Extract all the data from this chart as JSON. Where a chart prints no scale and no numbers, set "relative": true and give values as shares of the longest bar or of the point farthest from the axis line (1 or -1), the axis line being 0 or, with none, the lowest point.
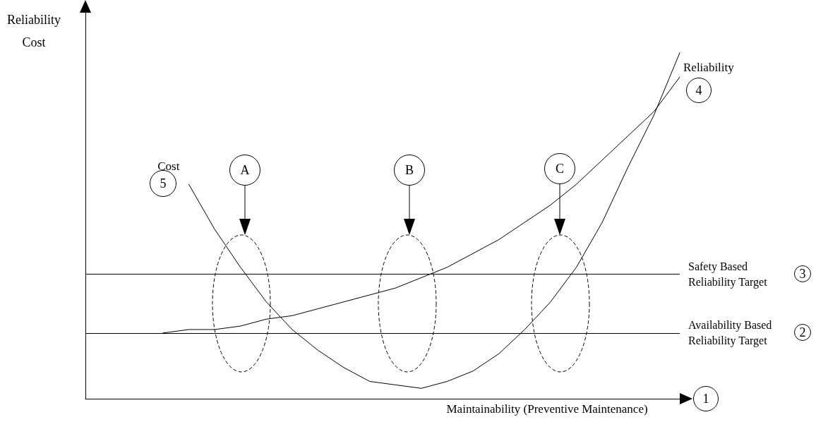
{
  "chart_data": {
    "type": "line",
    "relative": true,
    "xlabel": "Maintainability (Preventive Maintenance)",
    "ylabel": "Reliability Cost",
    "categories": [
      null,
      null,
      null,
      null,
      null,
      null,
      null,
      null,
      null,
      null,
      null,
      null,
      null,
      null,
      null,
      null,
      null,
      null,
      null,
      null,
      null,
      null,
      null,
      null
    ],
    "series": [
      {
        "name": "Cost",
        "color": "#000000",
        "values": [
          null,
          null,
          null,
          null,
          0.62,
          0.49,
          0.38,
          0.28,
          0.2,
          0.14,
          0.09,
          0.05,
          0.04,
          0.03,
          0.05,
          0.08,
          0.13,
          0.2,
          0.28,
          0.38,
          0.51,
          0.67,
          0.82,
          1.0
        ]
      },
      {
        "name": "Reliability",
        "color": "#000000",
        "values": [
          null,
          null,
          null,
          0.19,
          0.2,
          0.2,
          0.21,
          0.23,
          0.24,
          0.26,
          0.28,
          0.3,
          0.32,
          0.35,
          0.38,
          0.42,
          0.46,
          0.51,
          0.56,
          0.62,
          0.69,
          0.76,
          0.83,
          0.93
        ]
      }
    ],
    "ref_lines": [
      {
        "axis": "y",
        "value": 0.36,
        "label": "Safety Based Reliability Target",
        "color": "#000000"
      },
      {
        "axis": "y",
        "value": 0.19,
        "label": "Availability Based Reliability Target",
        "color": "#000000"
      }
    ],
    "marker": "none",
    "annotations": [
      "1",
      "2",
      "3",
      "4",
      "5",
      "A",
      "B",
      "C"
    ]
  }
}
